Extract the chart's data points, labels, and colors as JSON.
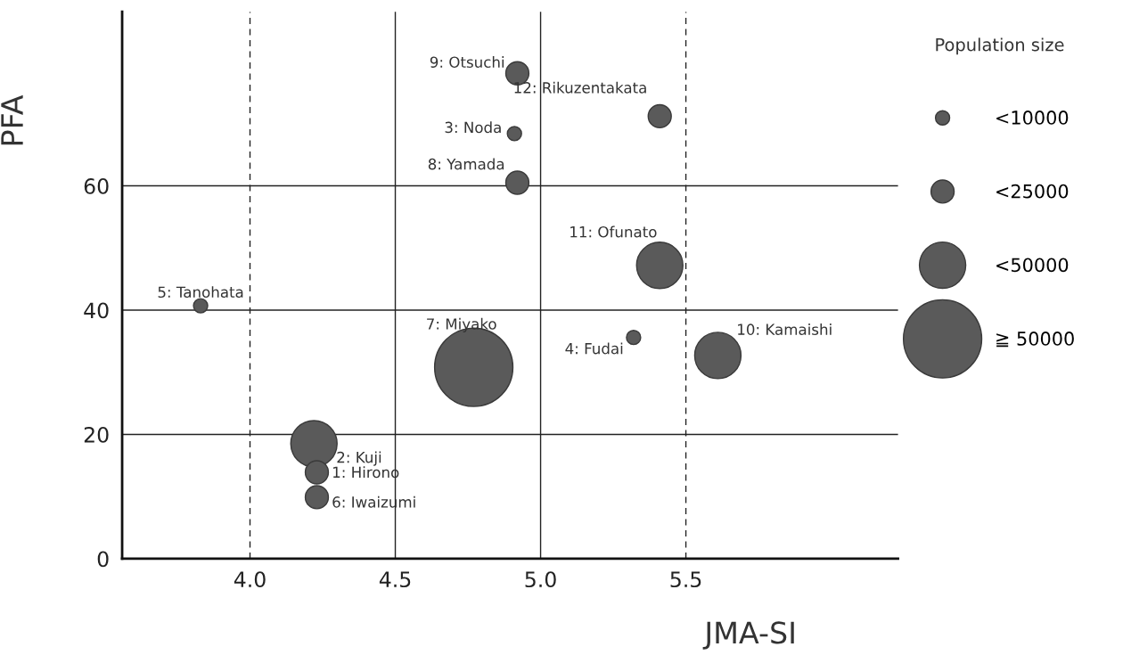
{
  "chart_data": {
    "type": "bubble",
    "xlabel": "JMA-SI",
    "ylabel": "PFA",
    "legend_title": "Population size",
    "x": [
      4.92,
      4.91,
      4.92,
      5.41,
      5.41,
      3.83,
      4.77,
      4.22,
      4.23,
      4.23,
      5.32,
      5.61
    ],
    "series": [
      {
        "color": "#5a5a5a",
        "values": [
          78.1,
          68.4,
          60.5,
          71.2,
          47.2,
          40.7,
          30.8,
          18.5,
          13.9,
          9.9,
          35.6,
          32.7
        ],
        "sizes": [
          0.087,
          0.033,
          0.087,
          0.087,
          0.35,
          0.033,
          1,
          0.35,
          0.087,
          0.087,
          0.033,
          0.35
        ]
      }
    ],
    "size_legend": [
      {
        "value": 0.033,
        "label": "<10000"
      },
      {
        "value": 0.087,
        "label": "<25000"
      },
      {
        "value": 0.35,
        "label": "<50000"
      },
      {
        "value": 1,
        "label": "≧ 50000"
      }
    ],
    "annotations": [
      {
        "text": "9: Otsuchi",
        "x": 4.92,
        "y": 78.1
      },
      {
        "text": "3: Noda",
        "x": 4.91,
        "y": 68.4
      },
      {
        "text": "8: Yamada",
        "x": 4.92,
        "y": 60.5
      },
      {
        "text": "12: Rikuzentakata",
        "x": 5.41,
        "y": 71.2
      },
      {
        "text": "11: Ofunato",
        "x": 5.41,
        "y": 47.2
      },
      {
        "text": "5: Tanohata",
        "x": 3.83,
        "y": 40.7
      },
      {
        "text": "7: Miyako",
        "x": 4.77,
        "y": 30.8
      },
      {
        "text": "2: Kuji",
        "x": 4.22,
        "y": 18.5
      },
      {
        "text": "1: Hirono",
        "x": 4.23,
        "y": 13.9
      },
      {
        "text": "6: Iwaizumi",
        "x": 4.23,
        "y": 9.9
      },
      {
        "text": "4: Fudai",
        "x": 5.32,
        "y": 35.6
      },
      {
        "text": "10: Kamaishi",
        "x": 5.61,
        "y": 32.7
      }
    ],
    "xlim": [
      3.56,
      6.23
    ],
    "ylim": [
      0,
      88
    ],
    "xticks": [
      {
        "value": 4,
        "label": "4.0"
      },
      4.5,
      {
        "value": 5,
        "label": "5.0"
      },
      5.5
    ],
    "yticks": [
      0,
      20,
      40,
      60
    ],
    "grid": "y",
    "ref_lines": [
      {
        "axis": "x",
        "value": 4,
        "line_style": "dashed"
      },
      {
        "axis": "x",
        "value": 4.5,
        "line_style": "solid"
      },
      {
        "axis": "x",
        "value": 5,
        "line_style": "solid"
      },
      {
        "axis": "x",
        "value": 5.5,
        "line_style": "dashed"
      }
    ]
  }
}
